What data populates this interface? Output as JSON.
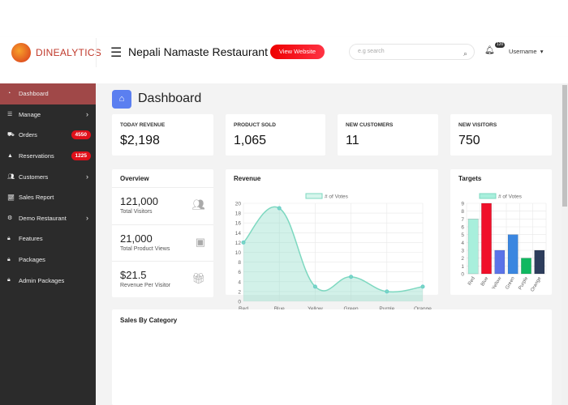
{
  "header": {
    "logo": "DINEALYTICS",
    "restaurant": "Nepali Namaste Restaurant",
    "view_website": "View Website",
    "search_placeholder": "e.g search",
    "notif_count": "120",
    "username": "Username"
  },
  "sidebar": {
    "items": [
      {
        "label": "Dashboard",
        "icon": "tachometer-icon",
        "active": true
      },
      {
        "label": "Manage",
        "icon": "list-icon",
        "chevron": true
      },
      {
        "label": "Orders",
        "icon": "cart-icon",
        "badge": "4550"
      },
      {
        "label": "Reservations",
        "icon": "reservation-icon",
        "badge": "1225"
      },
      {
        "label": "Customers",
        "icon": "users-icon",
        "chevron": true
      },
      {
        "label": "Sales Report",
        "icon": "line-chart-icon"
      },
      {
        "label": "Demo Restaurant",
        "icon": "gear-icon",
        "chevron": true
      },
      {
        "label": "Features",
        "icon": "lock-icon"
      },
      {
        "label": "Packages",
        "icon": "lock-icon"
      },
      {
        "label": "Admin Packages",
        "icon": "lock-icon"
      }
    ]
  },
  "page": {
    "title": "Dashboard"
  },
  "stats": [
    {
      "label": "TODAY REVENUE",
      "value": "$2,198"
    },
    {
      "label": "PRODUCT SOLD",
      "value": "1,065"
    },
    {
      "label": "NEW CUSTOMERS",
      "value": "11"
    },
    {
      "label": "NEW VISITORS",
      "value": "750"
    }
  ],
  "overview": {
    "title": "Overview",
    "rows": [
      {
        "value": "121,000",
        "label": "Total Visitors",
        "icon": "users-icon"
      },
      {
        "value": "21,000",
        "label": "Total Product Views",
        "icon": "image-icon"
      },
      {
        "value": "$21.5",
        "label": "Revenue Per Visitor",
        "icon": "gift-icon"
      }
    ]
  },
  "sales_by_category": {
    "title": "Sales By Category"
  },
  "chart_data": [
    {
      "type": "area",
      "title": "Revenue",
      "legend": "# of Votes",
      "legend_position": "top",
      "categories": [
        "Red",
        "Blue",
        "Yellow",
        "Green",
        "Purple",
        "Orange"
      ],
      "values": [
        12,
        19,
        3,
        5,
        2,
        3
      ],
      "ylim": [
        0,
        20
      ],
      "yticks": [
        0,
        2,
        4,
        6,
        8,
        10,
        12,
        14,
        16,
        18,
        20
      ],
      "color": "#7dd8c0",
      "grid": true
    },
    {
      "type": "bar",
      "title": "Targets",
      "legend": "# of Votes",
      "legend_position": "top",
      "categories": [
        "Red",
        "Blue",
        "Yellow",
        "Green",
        "Purple",
        "Orange"
      ],
      "values": [
        7,
        9,
        3,
        5,
        2,
        3
      ],
      "ylim": [
        0,
        9
      ],
      "yticks": [
        0,
        1,
        2,
        3,
        4,
        5,
        6,
        7,
        8,
        9
      ],
      "colors": [
        "#a8efdc",
        "#f0102a",
        "#5b73e8",
        "#3a86e0",
        "#10b860",
        "#2d3d5c"
      ],
      "grid": true
    }
  ]
}
